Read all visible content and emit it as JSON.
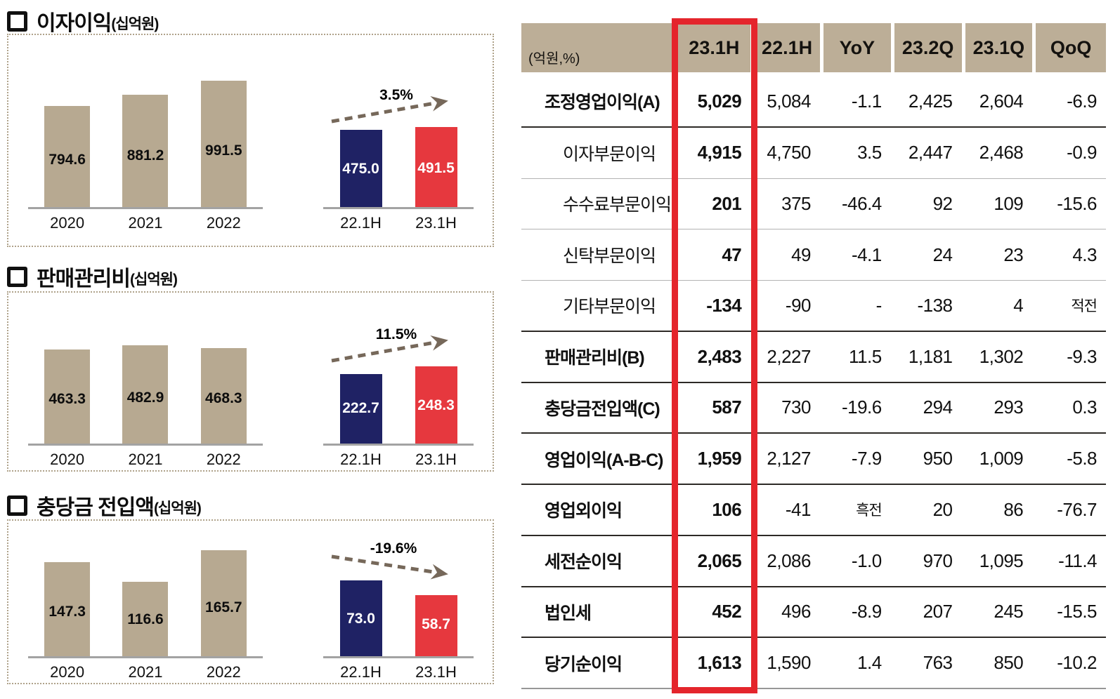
{
  "charts": [
    {
      "title": "이자이익",
      "unit": "(십억원)",
      "growth": "3.5%",
      "direction": "up",
      "years": {
        "labels": [
          "2020",
          "2021",
          "2022"
        ],
        "values": [
          "794.6",
          "881.2",
          "991.5"
        ]
      },
      "half": {
        "labels": [
          "22.1H",
          "23.1H"
        ],
        "values": [
          "475.0",
          "491.5"
        ]
      }
    },
    {
      "title": "판매관리비",
      "unit": "(십억원)",
      "growth": "11.5%",
      "direction": "up",
      "years": {
        "labels": [
          "2020",
          "2021",
          "2022"
        ],
        "values": [
          "463.3",
          "482.9",
          "468.3"
        ]
      },
      "half": {
        "labels": [
          "22.1H",
          "23.1H"
        ],
        "values": [
          "222.7",
          "248.3"
        ]
      }
    },
    {
      "title": "충당금 전입액",
      "unit": "(십억원)",
      "growth": "-19.6%",
      "direction": "down",
      "years": {
        "labels": [
          "2020",
          "2021",
          "2022"
        ],
        "values": [
          "147.3",
          "116.6",
          "165.7"
        ]
      },
      "half": {
        "labels": [
          "22.1H",
          "23.1H"
        ],
        "values": [
          "73.0",
          "58.7"
        ]
      }
    }
  ],
  "table": {
    "note": "(억원,%)",
    "columns": [
      "23.1H",
      "22.1H",
      "YoY",
      "23.2Q",
      "23.1Q",
      "QoQ"
    ],
    "highlight_column": "23.1H",
    "rows": [
      {
        "label": "조정영업이익(A)",
        "indent": false,
        "values": [
          "5,029",
          "5,084",
          "-1.1",
          "2,425",
          "2,604",
          "-6.9"
        ]
      },
      {
        "label": "이자부문이익",
        "indent": true,
        "values": [
          "4,915",
          "4,750",
          "3.5",
          "2,447",
          "2,468",
          "-0.9"
        ]
      },
      {
        "label": "수수료부문이익",
        "indent": true,
        "values": [
          "201",
          "375",
          "-46.4",
          "92",
          "109",
          "-15.6"
        ]
      },
      {
        "label": "신탁부문이익",
        "indent": true,
        "values": [
          "47",
          "49",
          "-4.1",
          "24",
          "23",
          "4.3"
        ]
      },
      {
        "label": "기타부문이익",
        "indent": true,
        "values": [
          "-134",
          "-90",
          "-",
          "-138",
          "4",
          "적전"
        ]
      },
      {
        "label": "판매관리비(B)",
        "indent": false,
        "values": [
          "2,483",
          "2,227",
          "11.5",
          "1,181",
          "1,302",
          "-9.3"
        ]
      },
      {
        "label": "충당금전입액(C)",
        "indent": false,
        "values": [
          "587",
          "730",
          "-19.6",
          "294",
          "293",
          "0.3"
        ]
      },
      {
        "label": "영업이익(A-B-C)",
        "indent": false,
        "values": [
          "1,959",
          "2,127",
          "-7.9",
          "950",
          "1,009",
          "-5.8"
        ]
      },
      {
        "label": "영업외이익",
        "indent": false,
        "values": [
          "106",
          "-41",
          "흑전",
          "20",
          "86",
          "-76.7"
        ]
      },
      {
        "label": "세전순이익",
        "indent": false,
        "values": [
          "2,065",
          "2,086",
          "-1.0",
          "970",
          "1,095",
          "-11.4"
        ]
      },
      {
        "label": "법인세",
        "indent": false,
        "values": [
          "452",
          "496",
          "-8.9",
          "207",
          "245",
          "-15.5"
        ]
      },
      {
        "label": "당기순이익",
        "indent": false,
        "values": [
          "1,613",
          "1,590",
          "1.4",
          "763",
          "850",
          "-10.2"
        ]
      }
    ]
  },
  "colors": {
    "tan": "#B7A991",
    "header_tan": "#BCAE97",
    "navy": "#1F2264",
    "red": "#E6383E",
    "highlight_box": "#E4252C",
    "arrow": "#76685A"
  },
  "chart_data": [
    {
      "type": "bar",
      "title": "이자이익",
      "ylabel": "십억원",
      "categories": [
        "2020",
        "2021",
        "2022"
      ],
      "values": [
        794.6,
        881.2,
        991.5
      ],
      "half_categories": [
        "22.1H",
        "23.1H"
      ],
      "half_values": [
        475.0,
        491.5
      ],
      "growth_pct": 3.5
    },
    {
      "type": "bar",
      "title": "판매관리비",
      "ylabel": "십억원",
      "categories": [
        "2020",
        "2021",
        "2022"
      ],
      "values": [
        463.3,
        482.9,
        468.3
      ],
      "half_categories": [
        "22.1H",
        "23.1H"
      ],
      "half_values": [
        222.7,
        248.3
      ],
      "growth_pct": 11.5
    },
    {
      "type": "bar",
      "title": "충당금 전입액",
      "ylabel": "십억원",
      "categories": [
        "2020",
        "2021",
        "2022"
      ],
      "values": [
        147.3,
        116.6,
        165.7
      ],
      "half_categories": [
        "22.1H",
        "23.1H"
      ],
      "half_values": [
        73.0,
        58.7
      ],
      "growth_pct": -19.6
    },
    {
      "type": "table",
      "title": "(억원,%)",
      "columns": [
        "23.1H",
        "22.1H",
        "YoY",
        "23.2Q",
        "23.1Q",
        "QoQ"
      ],
      "rows": [
        [
          "조정영업이익(A)",
          "5,029",
          "5,084",
          "-1.1",
          "2,425",
          "2,604",
          "-6.9"
        ],
        [
          "이자부문이익",
          "4,915",
          "4,750",
          "3.5",
          "2,447",
          "2,468",
          "-0.9"
        ],
        [
          "수수료부문이익",
          "201",
          "375",
          "-46.4",
          "92",
          "109",
          "-15.6"
        ],
        [
          "신탁부문이익",
          "47",
          "49",
          "-4.1",
          "24",
          "23",
          "4.3"
        ],
        [
          "기타부문이익",
          "-134",
          "-90",
          "-",
          "-138",
          "4",
          "적전"
        ],
        [
          "판매관리비(B)",
          "2,483",
          "2,227",
          "11.5",
          "1,181",
          "1,302",
          "-9.3"
        ],
        [
          "충당금전입액(C)",
          "587",
          "730",
          "-19.6",
          "294",
          "293",
          "0.3"
        ],
        [
          "영업이익(A-B-C)",
          "1,959",
          "2,127",
          "-7.9",
          "950",
          "1,009",
          "-5.8"
        ],
        [
          "영업외이익",
          "106",
          "-41",
          "흑전",
          "20",
          "86",
          "-76.7"
        ],
        [
          "세전순이익",
          "2,065",
          "2,086",
          "-1.0",
          "970",
          "1,095",
          "-11.4"
        ],
        [
          "법인세",
          "452",
          "496",
          "-8.9",
          "207",
          "245",
          "-15.5"
        ],
        [
          "당기순이익",
          "1,613",
          "1,590",
          "1.4",
          "763",
          "850",
          "-10.2"
        ]
      ]
    }
  ]
}
